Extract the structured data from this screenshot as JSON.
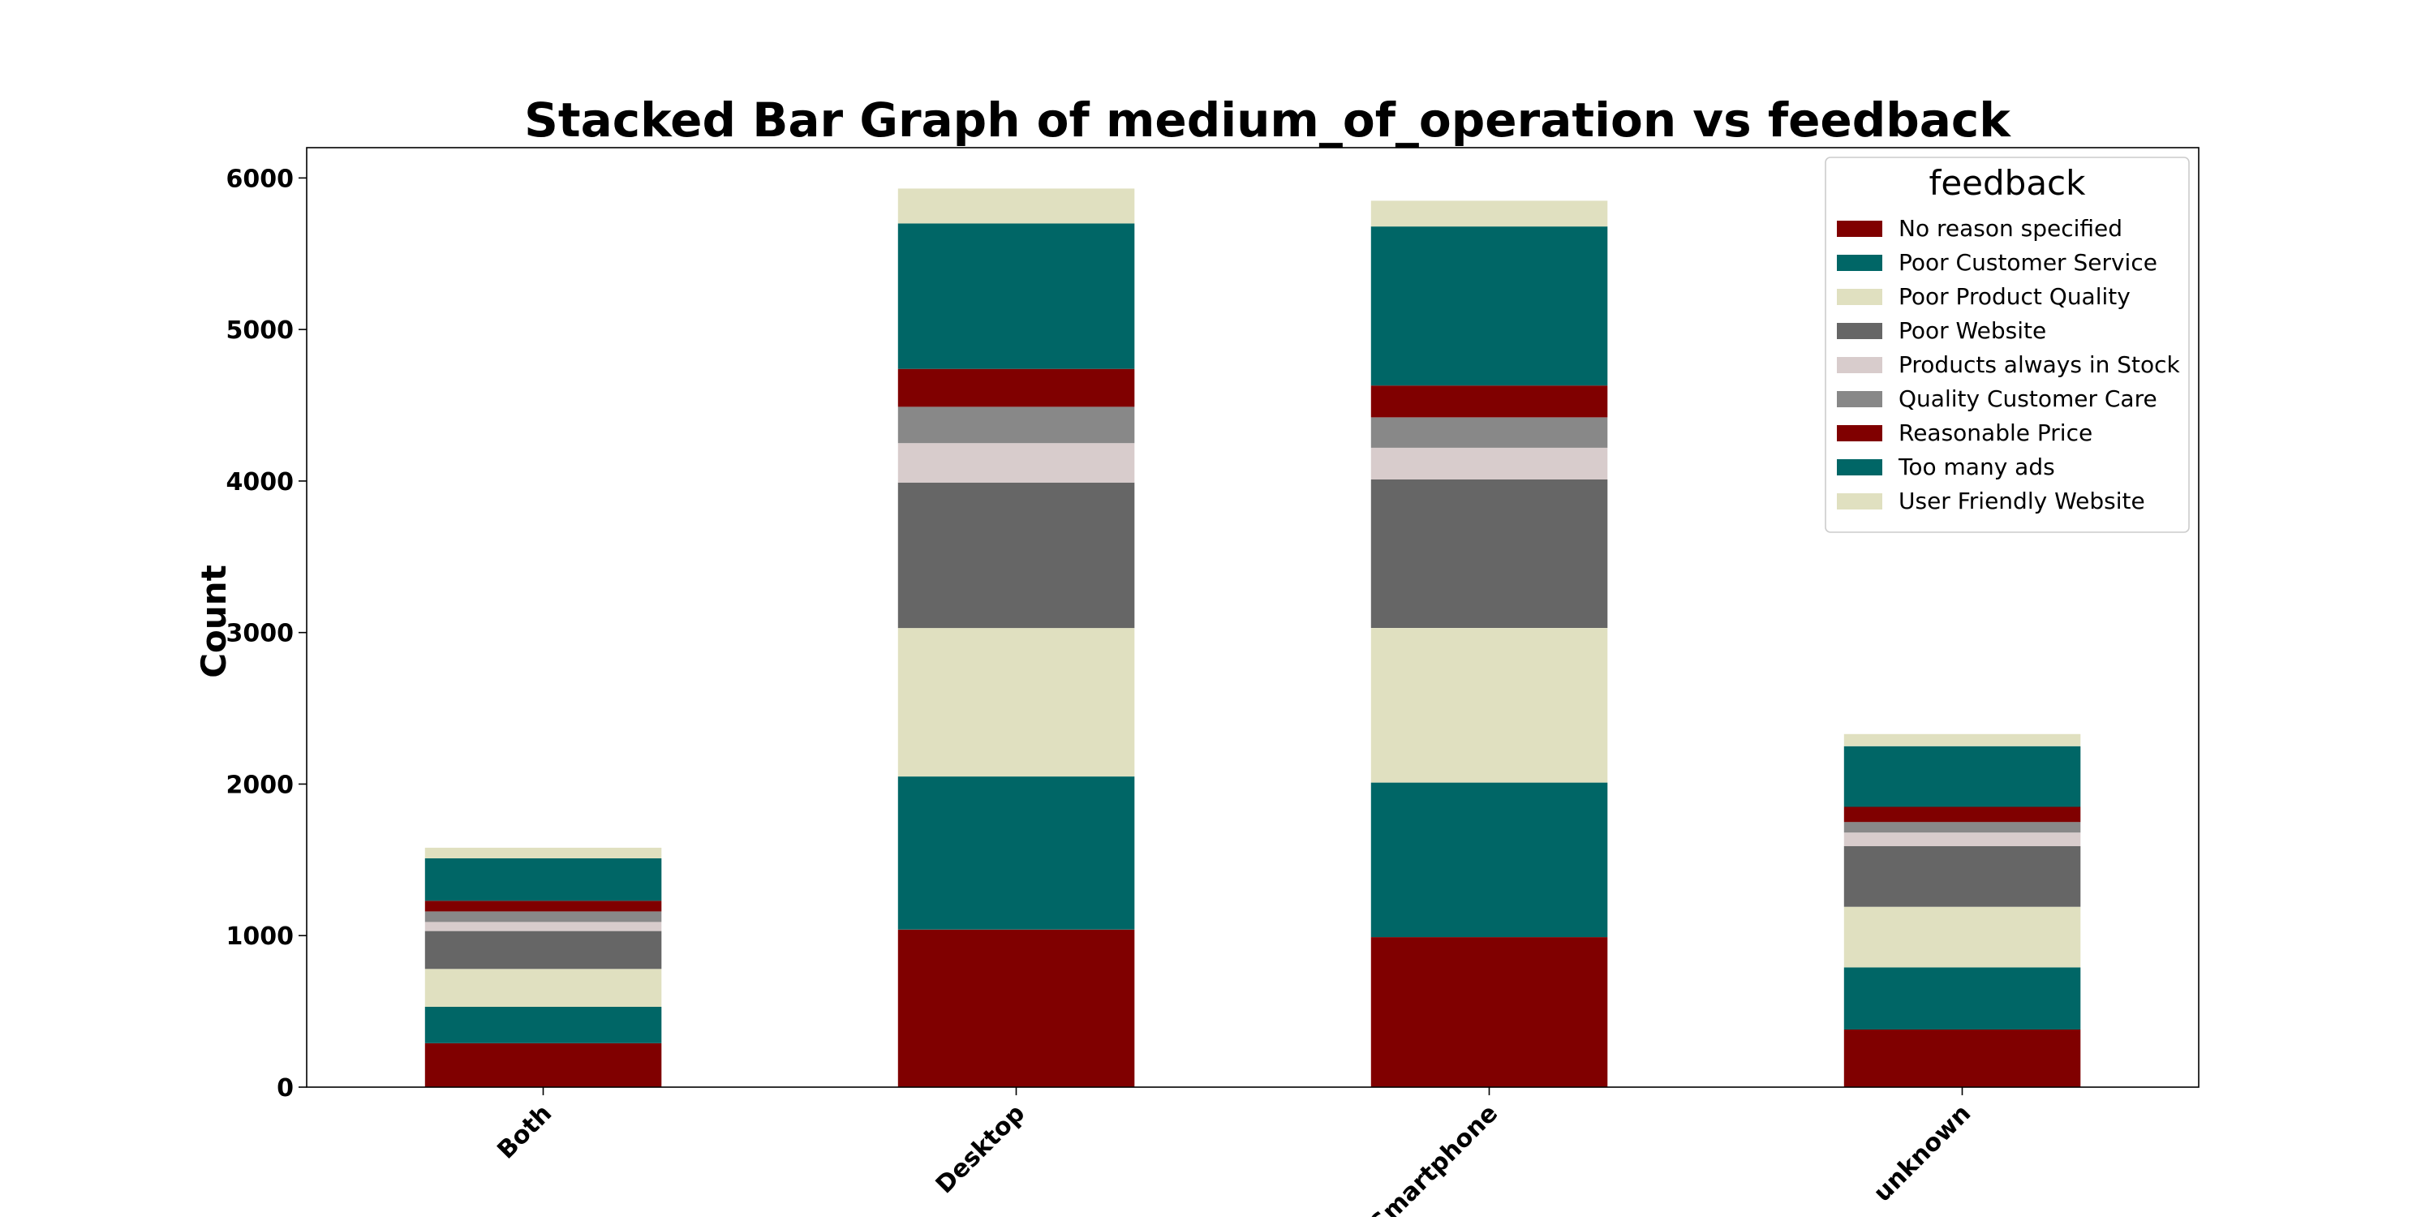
{
  "chart_data": {
    "type": "bar",
    "stacked": true,
    "title": "Stacked Bar Graph of medium_of_operation vs feedback",
    "xlabel": "",
    "ylabel": "Count",
    "ylim": [
      0,
      6200
    ],
    "yticks": [
      0,
      1000,
      2000,
      3000,
      4000,
      5000,
      6000
    ],
    "categories": [
      "Both",
      "Desktop",
      "Smartphone",
      "unknown"
    ],
    "legend": {
      "title": "feedback",
      "position": "top-right"
    },
    "grid": false,
    "series": [
      {
        "name": "No reason specified",
        "color": "#800000",
        "values": [
          290,
          1040,
          990,
          380
        ]
      },
      {
        "name": "Poor Customer Service",
        "color": "#006666",
        "values": [
          240,
          1010,
          1020,
          410
        ]
      },
      {
        "name": "Poor Product Quality",
        "color": "#e0e0c0",
        "values": [
          250,
          980,
          1020,
          400
        ]
      },
      {
        "name": "Poor Website",
        "color": "#666666",
        "values": [
          250,
          960,
          980,
          400
        ]
      },
      {
        "name": "Products always in Stock",
        "color": "#d8cccc",
        "values": [
          60,
          260,
          210,
          90
        ]
      },
      {
        "name": "Quality Customer Care",
        "color": "#888888",
        "values": [
          70,
          240,
          200,
          70
        ]
      },
      {
        "name": "Reasonable Price",
        "color": "#800000",
        "values": [
          70,
          250,
          210,
          100
        ]
      },
      {
        "name": "Too many ads",
        "color": "#006666",
        "values": [
          280,
          960,
          1050,
          400
        ]
      },
      {
        "name": "User Friendly Website",
        "color": "#e0e0c0",
        "values": [
          70,
          230,
          170,
          80
        ]
      }
    ]
  }
}
